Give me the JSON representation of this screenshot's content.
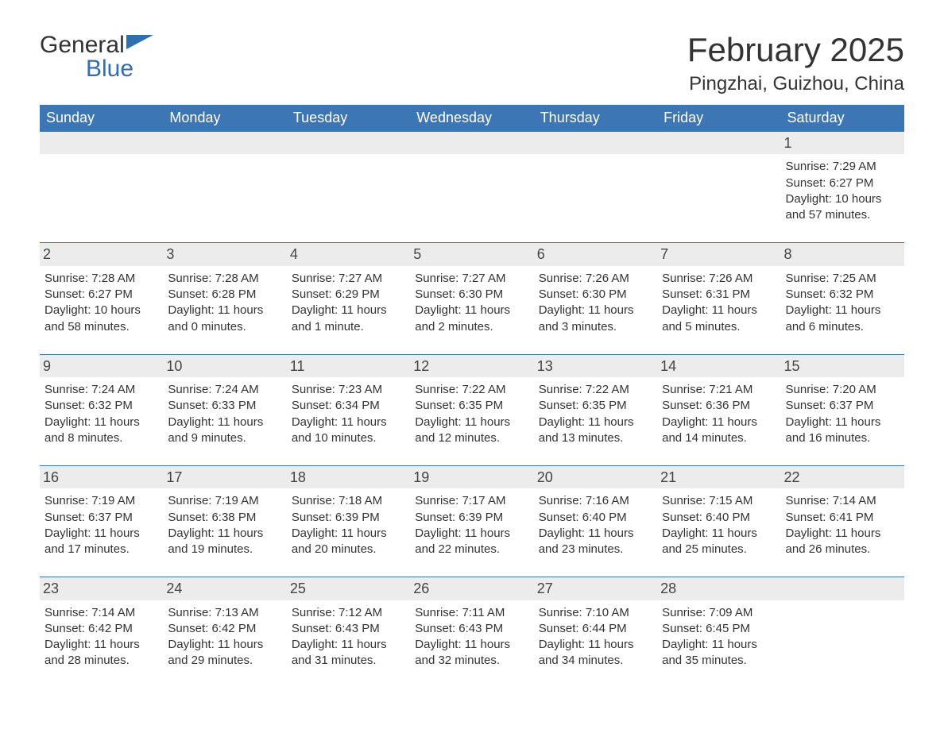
{
  "brand": {
    "name_part1": "General",
    "name_part2": "Blue",
    "logo_color": "#2f6fb0"
  },
  "title": "February 2025",
  "location": "Pingzhai, Guizhou, China",
  "colors": {
    "header_bg": "#3c76b4",
    "header_text": "#ffffff",
    "row_border": "#3c76b4",
    "daynum_bg": "#ececec",
    "body_text": "#333333",
    "page_bg": "#ffffff"
  },
  "weekdays": [
    "Sunday",
    "Monday",
    "Tuesday",
    "Wednesday",
    "Thursday",
    "Friday",
    "Saturday"
  ],
  "weeks": [
    [
      null,
      null,
      null,
      null,
      null,
      null,
      {
        "d": "1",
        "sr": "7:29 AM",
        "ss": "6:27 PM",
        "dl": "10 hours and 57 minutes."
      }
    ],
    [
      {
        "d": "2",
        "sr": "7:28 AM",
        "ss": "6:27 PM",
        "dl": "10 hours and 58 minutes."
      },
      {
        "d": "3",
        "sr": "7:28 AM",
        "ss": "6:28 PM",
        "dl": "11 hours and 0 minutes."
      },
      {
        "d": "4",
        "sr": "7:27 AM",
        "ss": "6:29 PM",
        "dl": "11 hours and 1 minute."
      },
      {
        "d": "5",
        "sr": "7:27 AM",
        "ss": "6:30 PM",
        "dl": "11 hours and 2 minutes."
      },
      {
        "d": "6",
        "sr": "7:26 AM",
        "ss": "6:30 PM",
        "dl": "11 hours and 3 minutes."
      },
      {
        "d": "7",
        "sr": "7:26 AM",
        "ss": "6:31 PM",
        "dl": "11 hours and 5 minutes."
      },
      {
        "d": "8",
        "sr": "7:25 AM",
        "ss": "6:32 PM",
        "dl": "11 hours and 6 minutes."
      }
    ],
    [
      {
        "d": "9",
        "sr": "7:24 AM",
        "ss": "6:32 PM",
        "dl": "11 hours and 8 minutes."
      },
      {
        "d": "10",
        "sr": "7:24 AM",
        "ss": "6:33 PM",
        "dl": "11 hours and 9 minutes."
      },
      {
        "d": "11",
        "sr": "7:23 AM",
        "ss": "6:34 PM",
        "dl": "11 hours and 10 minutes."
      },
      {
        "d": "12",
        "sr": "7:22 AM",
        "ss": "6:35 PM",
        "dl": "11 hours and 12 minutes."
      },
      {
        "d": "13",
        "sr": "7:22 AM",
        "ss": "6:35 PM",
        "dl": "11 hours and 13 minutes."
      },
      {
        "d": "14",
        "sr": "7:21 AM",
        "ss": "6:36 PM",
        "dl": "11 hours and 14 minutes."
      },
      {
        "d": "15",
        "sr": "7:20 AM",
        "ss": "6:37 PM",
        "dl": "11 hours and 16 minutes."
      }
    ],
    [
      {
        "d": "16",
        "sr": "7:19 AM",
        "ss": "6:37 PM",
        "dl": "11 hours and 17 minutes."
      },
      {
        "d": "17",
        "sr": "7:19 AM",
        "ss": "6:38 PM",
        "dl": "11 hours and 19 minutes."
      },
      {
        "d": "18",
        "sr": "7:18 AM",
        "ss": "6:39 PM",
        "dl": "11 hours and 20 minutes."
      },
      {
        "d": "19",
        "sr": "7:17 AM",
        "ss": "6:39 PM",
        "dl": "11 hours and 22 minutes."
      },
      {
        "d": "20",
        "sr": "7:16 AM",
        "ss": "6:40 PM",
        "dl": "11 hours and 23 minutes."
      },
      {
        "d": "21",
        "sr": "7:15 AM",
        "ss": "6:40 PM",
        "dl": "11 hours and 25 minutes."
      },
      {
        "d": "22",
        "sr": "7:14 AM",
        "ss": "6:41 PM",
        "dl": "11 hours and 26 minutes."
      }
    ],
    [
      {
        "d": "23",
        "sr": "7:14 AM",
        "ss": "6:42 PM",
        "dl": "11 hours and 28 minutes."
      },
      {
        "d": "24",
        "sr": "7:13 AM",
        "ss": "6:42 PM",
        "dl": "11 hours and 29 minutes."
      },
      {
        "d": "25",
        "sr": "7:12 AM",
        "ss": "6:43 PM",
        "dl": "11 hours and 31 minutes."
      },
      {
        "d": "26",
        "sr": "7:11 AM",
        "ss": "6:43 PM",
        "dl": "11 hours and 32 minutes."
      },
      {
        "d": "27",
        "sr": "7:10 AM",
        "ss": "6:44 PM",
        "dl": "11 hours and 34 minutes."
      },
      {
        "d": "28",
        "sr": "7:09 AM",
        "ss": "6:45 PM",
        "dl": "11 hours and 35 minutes."
      },
      null
    ]
  ],
  "labels": {
    "sunrise": "Sunrise: ",
    "sunset": "Sunset: ",
    "daylight": "Daylight: "
  }
}
